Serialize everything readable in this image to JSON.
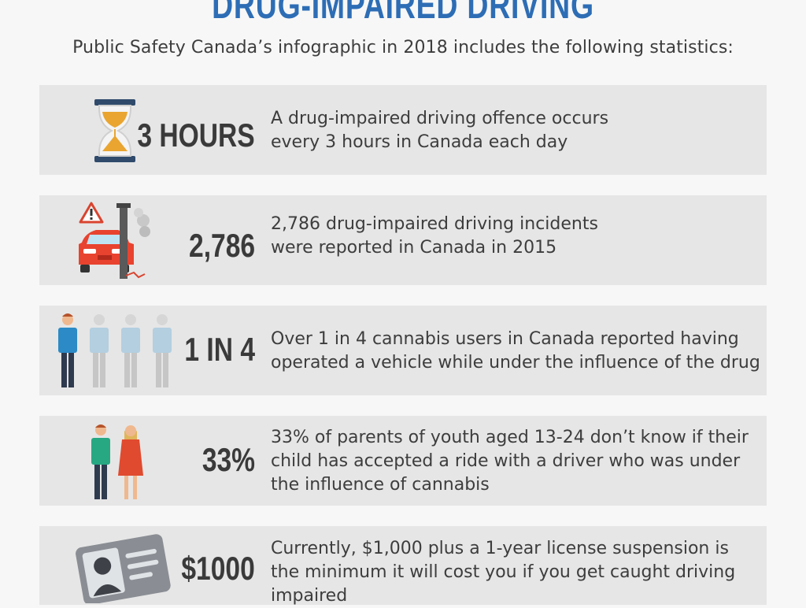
{
  "header": {
    "title": "DRUG-IMPAIRED DRIVING",
    "subtitle": "Public Safety Canada’s infographic in 2018 includes the following statistics:"
  },
  "stats": [
    {
      "icon": "hourglass-icon",
      "value": "3 HOURS",
      "lines": [
        "A drug-impaired driving offence occurs",
        "every 3 hours in Canada each day"
      ]
    },
    {
      "icon": "car-crash-icon",
      "value": "2,786",
      "lines": [
        "2,786 drug-impaired driving incidents",
        "were reported in Canada in 2015"
      ]
    },
    {
      "icon": "people-icon",
      "value": "1 IN 4",
      "lines": [
        "Over 1 in 4 cannabis users in Canada reported having",
        "operated a vehicle while under the influence of the drug"
      ]
    },
    {
      "icon": "parents-icon",
      "value": "33%",
      "lines": [
        "33% of parents of youth aged 13-24 don’t know if their",
        "child has accepted a ride with a driver who was under",
        "the influence of cannabis"
      ]
    },
    {
      "icon": "license-card-icon",
      "value": "$1000",
      "lines": [
        "Currently, $1,000 plus a 1-year license suspension is",
        "the minimum it will cost you if you get caught driving",
        "impaired"
      ]
    }
  ],
  "colors": {
    "title": "#2d6db5",
    "card": "#e6e6e6",
    "text": "#3d3d3d"
  }
}
